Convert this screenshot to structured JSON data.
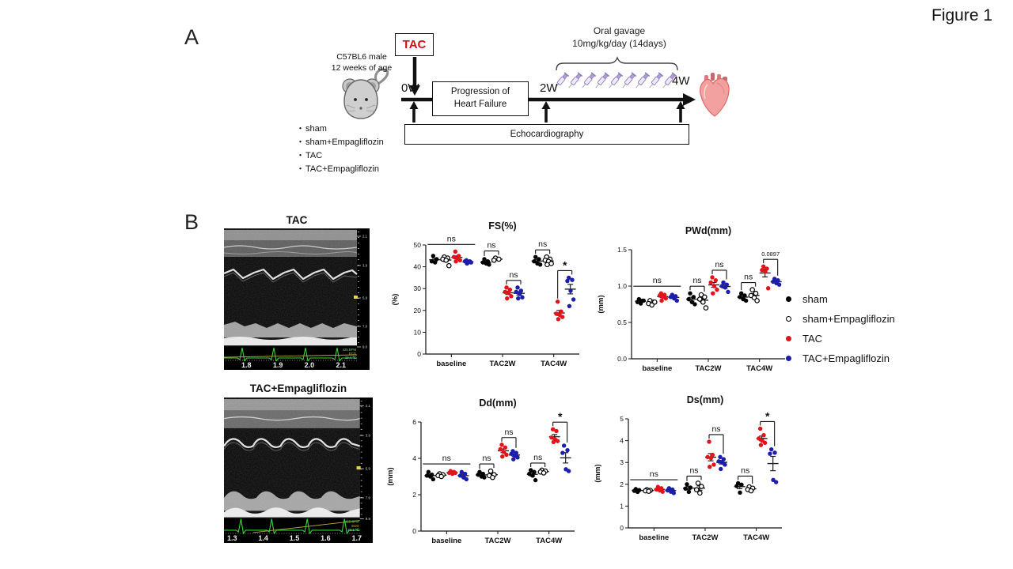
{
  "figure_label": "Figure 1",
  "panelA": {
    "label": "A",
    "tac_box": "TAC",
    "mouse_info": [
      "C57BL6 male",
      "12 weeks of age"
    ],
    "timepoints": {
      "start": "0W",
      "mid": "2W",
      "end": "4W"
    },
    "progression_box": [
      "Progression of",
      "Heart Failure"
    ],
    "oral_gavage": [
      "Oral gavage",
      "10mg/kg/day (14days)"
    ],
    "echo_box": "Echocardiography",
    "groups": [
      "sham",
      "sham+Empagliflozin",
      "TAC",
      "TAC+Empagliflozin"
    ]
  },
  "panelB": {
    "label": "B",
    "echo_images": [
      {
        "title": "TAC",
        "time_ticks": [
          "1.8",
          "1.9",
          "2.0",
          "2.1"
        ],
        "depth_ticks": [
          "2.1",
          "3.9",
          "5.9",
          "7.0",
          "9.0"
        ],
        "hud": [
          "425 BPM",
          "ECG",
          "23.4 ℃"
        ]
      },
      {
        "title": "TAC+Empagliflozin",
        "time_ticks": [
          "1.3",
          "1.4",
          "1.5",
          "1.6",
          "1.7"
        ],
        "depth_ticks": [
          "2.1",
          "3.9",
          "5.9",
          "7.9",
          "9.9"
        ],
        "hud": [
          "455 BPM",
          "ECG",
          "23.1 ℃"
        ]
      }
    ]
  },
  "legend": {
    "items": [
      {
        "label": "sham",
        "marker": "filled",
        "color": "#000000"
      },
      {
        "label": "sham+Empagliflozin",
        "marker": "open",
        "color": "#000000"
      },
      {
        "label": "TAC",
        "marker": "filled",
        "color": "#e4131b"
      },
      {
        "label": "TAC+Empagliflozin",
        "marker": "filled",
        "color": "#1d1dab"
      }
    ]
  },
  "chart_data": [
    {
      "id": "fs",
      "type": "scatter",
      "title": "FS(%)",
      "ylabel": "(%)",
      "ylim": [
        0,
        50
      ],
      "yticks": [
        0,
        10,
        20,
        30,
        40,
        50
      ],
      "ytick_labels": [
        "0",
        "10",
        "20",
        "30",
        "40",
        "50"
      ],
      "categories": [
        "baseline",
        "TAC2W",
        "TAC4W"
      ],
      "series": [
        {
          "name": "sham",
          "marker": "filled",
          "color": "#000000",
          "values": {
            "baseline": [
              45,
              43.5,
              42.5,
              42
            ],
            "TAC2W": [
              43.5,
              42.5,
              42,
              41.5,
              41
            ],
            "TAC4W": [
              44.5,
              43.5,
              42.5,
              41.5,
              41
            ]
          }
        },
        {
          "name": "sham+Empagliflozin",
          "marker": "open",
          "color": "#000000",
          "values": {
            "baseline": [
              44.5,
              44,
              43.5,
              43,
              40.5
            ],
            "TAC2W": [
              44,
              43.5,
              43
            ],
            "TAC4W": [
              44.5,
              43.5,
              43,
              42.5,
              41.5,
              41
            ]
          }
        },
        {
          "name": "TAC",
          "marker": "filled",
          "color": "#e4131b",
          "values": {
            "baseline": [
              47,
              45,
              44.5,
              44,
              43,
              42.5
            ],
            "TAC2W": [
              30.5,
              29.5,
              28.5,
              28,
              26.5,
              25.5
            ],
            "TAC4W": [
              24,
              19.5,
              18.5,
              18,
              17,
              16
            ]
          }
        },
        {
          "name": "TAC+Empagliflozin",
          "marker": "filled",
          "color": "#1d1dab",
          "values": {
            "baseline": [
              43,
              42.5,
              42.5,
              42,
              42,
              41.5
            ],
            "TAC2W": [
              30.5,
              29,
              28.5,
              27.5,
              26,
              25.5
            ],
            "TAC4W": [
              35,
              34,
              33.5,
              29,
              25,
              22
            ]
          }
        }
      ],
      "annotations": [
        {
          "category": "baseline",
          "span": "all",
          "label": "ns"
        },
        {
          "category": "TAC2W",
          "span": "pair-1-2",
          "label": "ns"
        },
        {
          "category": "TAC2W",
          "span": "pair-3-4",
          "label": "ns"
        },
        {
          "category": "TAC4W",
          "span": "pair-1-2",
          "label": "ns"
        },
        {
          "category": "TAC4W",
          "span": "pair-3-4",
          "label": "*"
        }
      ]
    },
    {
      "id": "pwd",
      "type": "scatter",
      "title": "PWd(mm)",
      "ylabel": "(mm)",
      "ylim": [
        0,
        1.5
      ],
      "yticks": [
        0,
        0.5,
        1.0,
        1.5
      ],
      "ytick_labels": [
        "0.0",
        "0.5",
        "1.0",
        "1.5"
      ],
      "categories": [
        "baseline",
        "TAC2W",
        "TAC4W"
      ],
      "series": [
        {
          "name": "sham",
          "marker": "filled",
          "color": "#000000",
          "values": {
            "baseline": [
              0.82,
              0.8,
              0.78,
              0.76,
              0.8
            ],
            "TAC2W": [
              0.9,
              0.85,
              0.82,
              0.78,
              0.75
            ],
            "TAC4W": [
              0.9,
              0.87,
              0.85,
              0.82,
              0.8
            ]
          }
        },
        {
          "name": "sham+Empagliflozin",
          "marker": "open",
          "color": "#000000",
          "values": {
            "baseline": [
              0.8,
              0.78,
              0.76,
              0.74,
              0.78
            ],
            "TAC2W": [
              0.88,
              0.85,
              0.82,
              0.78,
              0.7
            ],
            "TAC4W": [
              0.95,
              0.9,
              0.87,
              0.84,
              0.8
            ]
          }
        },
        {
          "name": "TAC",
          "marker": "filled",
          "color": "#e4131b",
          "values": {
            "baseline": [
              0.9,
              0.88,
              0.87,
              0.85,
              0.83,
              0.8
            ],
            "TAC2W": [
              1.12,
              1.08,
              1.05,
              1.0,
              0.95,
              0.9
            ],
            "TAC4W": [
              1.27,
              1.24,
              1.22,
              1.2,
              0.97
            ]
          }
        },
        {
          "name": "TAC+Empagliflozin",
          "marker": "filled",
          "color": "#1d1dab",
          "values": {
            "baseline": [
              0.88,
              0.86,
              0.85,
              0.83,
              0.8
            ],
            "TAC2W": [
              1.05,
              1.02,
              1.0,
              0.98,
              0.92
            ],
            "TAC4W": [
              1.1,
              1.08,
              1.06,
              1.04,
              1.02
            ]
          }
        }
      ],
      "annotations": [
        {
          "category": "baseline",
          "span": "all",
          "label": "ns"
        },
        {
          "category": "TAC2W",
          "span": "pair-1-2",
          "label": "ns"
        },
        {
          "category": "TAC2W",
          "span": "pair-3-4",
          "label": "ns"
        },
        {
          "category": "TAC4W",
          "span": "pair-1-2",
          "label": "ns"
        },
        {
          "category": "TAC4W",
          "span": "pair-3-4",
          "label": "0.0897"
        }
      ]
    },
    {
      "id": "dd",
      "type": "scatter",
      "title": "Dd(mm)",
      "ylabel": "(mm)",
      "ylim": [
        0,
        6
      ],
      "yticks": [
        0,
        2,
        4,
        6
      ],
      "ytick_labels": [
        "0",
        "2",
        "4",
        "6"
      ],
      "categories": [
        "baseline",
        "TAC2W",
        "TAC4W"
      ],
      "series": [
        {
          "name": "sham",
          "marker": "filled",
          "color": "#000000",
          "values": {
            "baseline": [
              3.25,
              3.1,
              3.05,
              3.0,
              2.85
            ],
            "TAC2W": [
              3.25,
              3.15,
              3.1,
              3.0,
              2.95
            ],
            "TAC4W": [
              3.35,
              3.25,
              3.15,
              3.05,
              2.8
            ]
          }
        },
        {
          "name": "sham+Empagliflozin",
          "marker": "open",
          "color": "#000000",
          "values": {
            "baseline": [
              3.15,
              3.1,
              3.05,
              3.0
            ],
            "TAC2W": [
              3.3,
              3.1,
              3.05,
              2.95
            ],
            "TAC4W": [
              3.35,
              3.3,
              3.25,
              3.2
            ]
          }
        },
        {
          "name": "TAC",
          "marker": "filled",
          "color": "#e4131b",
          "values": {
            "baseline": [
              3.3,
              3.25,
              3.2,
              3.15,
              3.2
            ],
            "TAC2W": [
              4.75,
              4.6,
              4.5,
              4.35,
              4.2,
              4.1
            ],
            "TAC4W": [
              5.6,
              5.5,
              5.15,
              5.05,
              4.95,
              4.9
            ]
          }
        },
        {
          "name": "TAC+Empagliflozin",
          "marker": "filled",
          "color": "#1d1dab",
          "values": {
            "baseline": [
              3.25,
              3.15,
              3.05,
              2.95,
              2.85
            ],
            "TAC2W": [
              4.4,
              4.3,
              4.25,
              4.15,
              4.05,
              3.95
            ],
            "TAC4W": [
              4.7,
              4.45,
              4.3,
              3.4,
              3.3
            ]
          }
        }
      ],
      "annotations": [
        {
          "category": "baseline",
          "span": "all",
          "label": "ns"
        },
        {
          "category": "TAC2W",
          "span": "pair-1-2",
          "label": "ns"
        },
        {
          "category": "TAC2W",
          "span": "pair-3-4",
          "label": "ns"
        },
        {
          "category": "TAC4W",
          "span": "pair-1-2",
          "label": "ns"
        },
        {
          "category": "TAC4W",
          "span": "pair-3-4",
          "label": "*"
        }
      ]
    },
    {
      "id": "ds",
      "type": "scatter",
      "title": "Ds(mm)",
      "ylabel": "(mm)",
      "ylim": [
        0,
        5
      ],
      "yticks": [
        0,
        1,
        2,
        3,
        4,
        5
      ],
      "ytick_labels": [
        "0",
        "1",
        "2",
        "3",
        "4",
        "5"
      ],
      "categories": [
        "baseline",
        "TAC2W",
        "TAC4W"
      ],
      "series": [
        {
          "name": "sham",
          "marker": "filled",
          "color": "#000000",
          "values": {
            "baseline": [
              1.78,
              1.73,
              1.7,
              1.65
            ],
            "TAC2W": [
              2.0,
              1.85,
              1.8,
              1.65
            ],
            "TAC4W": [
              2.05,
              1.98,
              1.92,
              1.62
            ]
          }
        },
        {
          "name": "sham+Empagliflozin",
          "marker": "open",
          "color": "#000000",
          "values": {
            "baseline": [
              1.75,
              1.72,
              1.7,
              1.68
            ],
            "TAC2W": [
              2.05,
              1.9,
              1.75,
              1.6
            ],
            "TAC4W": [
              1.88,
              1.82,
              1.76,
              1.7
            ]
          }
        },
        {
          "name": "TAC",
          "marker": "filled",
          "color": "#e4131b",
          "values": {
            "baseline": [
              1.88,
              1.82,
              1.76,
              1.72,
              1.66
            ],
            "TAC2W": [
              3.95,
              3.35,
              3.25,
              3.2,
              2.9,
              2.8
            ],
            "TAC4W": [
              4.55,
              4.25,
              4.1,
              4.0,
              3.9,
              3.8
            ]
          }
        },
        {
          "name": "TAC+Empagliflozin",
          "marker": "filled",
          "color": "#1d1dab",
          "values": {
            "baseline": [
              1.82,
              1.76,
              1.72,
              1.66,
              1.6
            ],
            "TAC2W": [
              3.25,
              3.15,
              3.05,
              3.0,
              2.9,
              2.7
            ],
            "TAC4W": [
              3.6,
              3.45,
              3.4,
              2.2,
              2.1
            ]
          }
        }
      ],
      "annotations": [
        {
          "category": "baseline",
          "span": "all",
          "label": "ns"
        },
        {
          "category": "TAC2W",
          "span": "pair-1-2",
          "label": "ns"
        },
        {
          "category": "TAC2W",
          "span": "pair-3-4",
          "label": "ns"
        },
        {
          "category": "TAC4W",
          "span": "pair-1-2",
          "label": "ns"
        },
        {
          "category": "TAC4W",
          "span": "pair-3-4",
          "label": "*"
        }
      ]
    }
  ]
}
